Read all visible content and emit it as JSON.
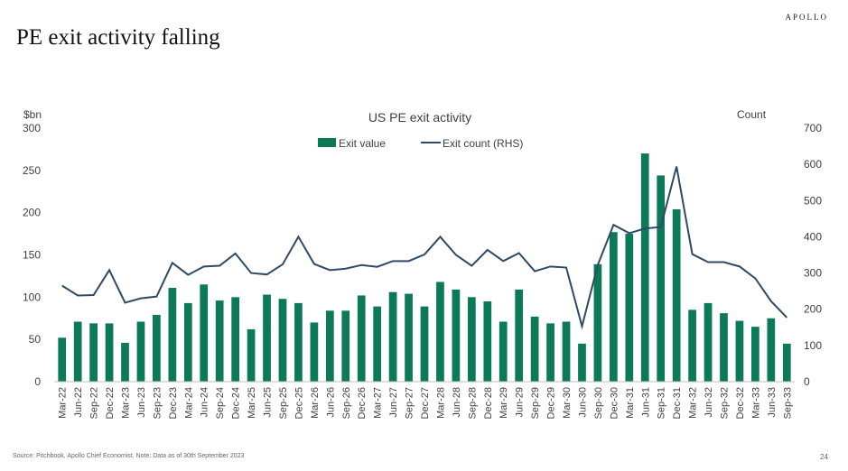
{
  "header": {
    "brand": "APOLLO",
    "title": "PE exit activity falling"
  },
  "footer": {
    "source": "Source: Pitchbook, Apollo Chief Economist. Note: Data as of 30th September 2023",
    "page_number": "24"
  },
  "colors": {
    "bar": "#0c7a59",
    "line": "#2e4a66",
    "text": "#404040"
  },
  "chart_data": {
    "type": "bar",
    "title": "US PE exit activity",
    "ylabel_left": "$bn",
    "ylabel_right": "Count",
    "ylim_left": [
      0,
      300
    ],
    "ylim_right": [
      0,
      700
    ],
    "yticks_left": [
      0,
      50,
      100,
      150,
      200,
      250,
      300
    ],
    "yticks_right": [
      0,
      100,
      200,
      300,
      400,
      500,
      600,
      700
    ],
    "legend_position": "top-center",
    "categories": [
      "Mar-22",
      "Jun-22",
      "Sep-22",
      "Dec-22",
      "Mar-23",
      "Jun-23",
      "Sep-23",
      "Dec-23",
      "Mar-24",
      "Jun-24",
      "Sep-24",
      "Dec-24",
      "Mar-25",
      "Jun-25",
      "Sep-25",
      "Dec-25",
      "Mar-26",
      "Jun-26",
      "Sep-26",
      "Dec-26",
      "Mar-27",
      "Jun-27",
      "Sep-27",
      "Dec-27",
      "Mar-28",
      "Jun-28",
      "Sep-28",
      "Dec-28",
      "Mar-29",
      "Jun-29",
      "Sep-29",
      "Dec-29",
      "Mar-30",
      "Jun-30",
      "Sep-30",
      "Dec-30",
      "Mar-31",
      "Jun-31",
      "Sep-31",
      "Dec-31",
      "Mar-32",
      "Jun-32",
      "Sep-32",
      "Dec-32",
      "Mar-33",
      "Jun-33",
      "Sep-33"
    ],
    "series": [
      {
        "name": "Exit value",
        "type": "bar",
        "axis": "left",
        "values": [
          52,
          71,
          69,
          69,
          46,
          71,
          79,
          111,
          93,
          115,
          96,
          100,
          62,
          103,
          98,
          93,
          70,
          84,
          84,
          102,
          89,
          106,
          104,
          89,
          118,
          109,
          100,
          95,
          71,
          109,
          77,
          69,
          71,
          45,
          139,
          177,
          175,
          270,
          244,
          204,
          85,
          93,
          81,
          72,
          65,
          75,
          45
        ]
      },
      {
        "name": "Exit count (RHS)",
        "type": "line",
        "axis": "right",
        "values": [
          265,
          238,
          239,
          308,
          218,
          230,
          235,
          328,
          295,
          318,
          320,
          354,
          300,
          296,
          324,
          400,
          325,
          308,
          312,
          322,
          317,
          333,
          333,
          351,
          400,
          350,
          320,
          364,
          333,
          355,
          305,
          318,
          315,
          153,
          322,
          433,
          410,
          423,
          427,
          594,
          352,
          330,
          330,
          318,
          285,
          222,
          177
        ]
      }
    ]
  }
}
